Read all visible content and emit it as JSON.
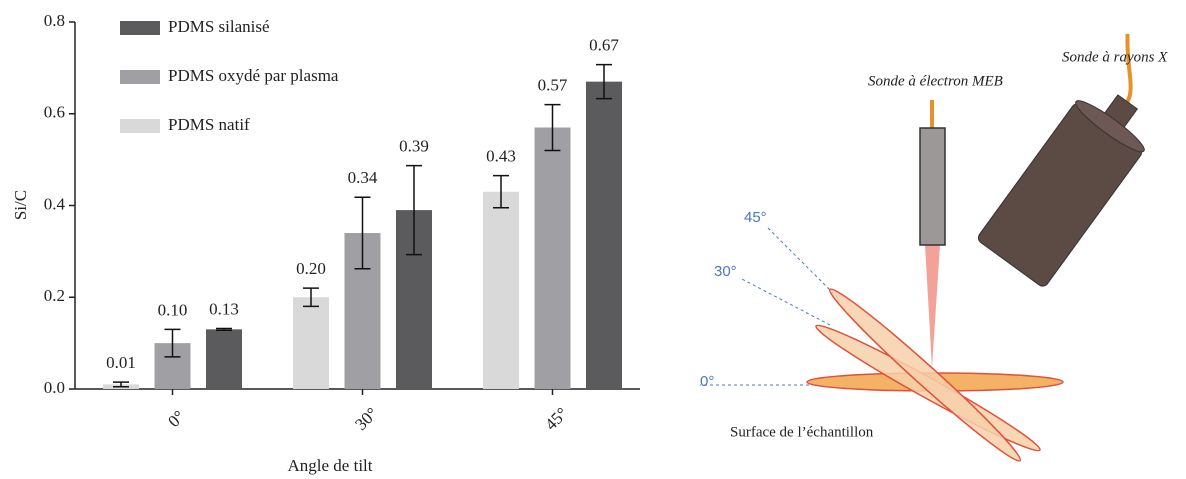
{
  "chart_data": {
    "type": "bar",
    "x_label": "Angle de tilt",
    "y_label": "Si/C",
    "categories": [
      "0°",
      "30°",
      "45°"
    ],
    "series": [
      {
        "name": "PDMS natif",
        "color": "#d9d9d9",
        "values": [
          0.01,
          0.2,
          0.43
        ],
        "value_labels": [
          "0.01",
          "0.20",
          "0.43"
        ],
        "errors": [
          0.005,
          0.02,
          0.035
        ]
      },
      {
        "name": "PDMS oxydé par plasma",
        "color": "#a0a0a4",
        "values": [
          0.1,
          0.34,
          0.57
        ],
        "value_labels": [
          "0.10",
          "0.34",
          "0.57"
        ],
        "errors": [
          0.03,
          0.078,
          0.05
        ]
      },
      {
        "name": "PDMS silanisé",
        "color": "#5b5b5d",
        "values": [
          0.13,
          0.39,
          0.67
        ],
        "value_labels": [
          "0.13",
          "0.39",
          "0.67"
        ],
        "errors": [
          0.002,
          0.097,
          0.037
        ]
      }
    ],
    "ylim": [
      0,
      0.8
    ],
    "yticks": [
      {
        "value": 0,
        "label": "0.0"
      },
      0.2,
      0.4,
      0.6,
      0.8
    ]
  },
  "diagram": {
    "probe_meb": "Sonde à électron MEB",
    "probe_x": "Sonde à rayons X",
    "angles": [
      "45°",
      "30°",
      "0°"
    ],
    "surface": "Surface de l’échantillon"
  }
}
